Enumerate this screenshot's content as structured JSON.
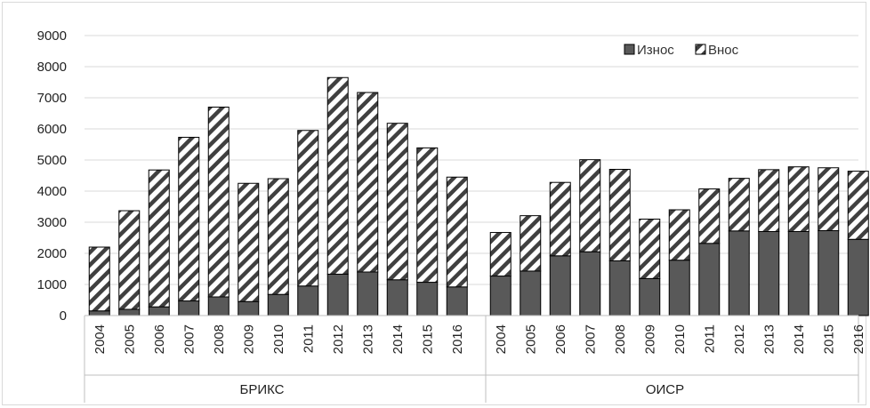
{
  "chart_data": {
    "type": "bar",
    "stacked": true,
    "title": "",
    "xlabel": "",
    "ylabel": "",
    "ylim": [
      0,
      9000
    ],
    "yticks": [
      0,
      1000,
      2000,
      3000,
      4000,
      5000,
      6000,
      7000,
      8000,
      9000
    ],
    "grid": true,
    "legend_position": "top-right",
    "groups": [
      {
        "name": "БРИКС",
        "categories": [
          "2004",
          "2005",
          "2006",
          "2007",
          "2008",
          "2009",
          "2010",
          "2011",
          "2012",
          "2013",
          "2014",
          "2015",
          "2016"
        ],
        "series": [
          {
            "name": "Износ",
            "values": [
              150,
              200,
              280,
              470,
              600,
              450,
              680,
              950,
              1330,
              1400,
              1150,
              1070,
              920
            ]
          },
          {
            "name": "Внос",
            "values": [
              2050,
              3170,
              4400,
              5260,
              6100,
              3800,
              3720,
              5000,
              6320,
              5770,
              5030,
              4320,
              3530
            ]
          }
        ]
      },
      {
        "name": "ОИСР",
        "categories": [
          "2004",
          "2005",
          "2006",
          "2007",
          "2008",
          "2009",
          "2010",
          "2011",
          "2012",
          "2013",
          "2014",
          "2015",
          "2016"
        ],
        "series": [
          {
            "name": "Износ",
            "values": [
              1270,
              1430,
              1920,
              2050,
              1760,
              1190,
              1780,
              2320,
              2720,
              2700,
              2700,
              2730,
              2450
            ]
          },
          {
            "name": "Внос",
            "values": [
              1400,
              1780,
              2360,
              2960,
              2940,
              1910,
              1620,
              1750,
              1690,
              1990,
              2080,
              2020,
              2190
            ]
          }
        ]
      }
    ],
    "colors": {
      "Износ": "#595959",
      "Внос_pattern": "#404040"
    }
  },
  "legend": {
    "items": [
      "Износ",
      "Внос"
    ]
  }
}
